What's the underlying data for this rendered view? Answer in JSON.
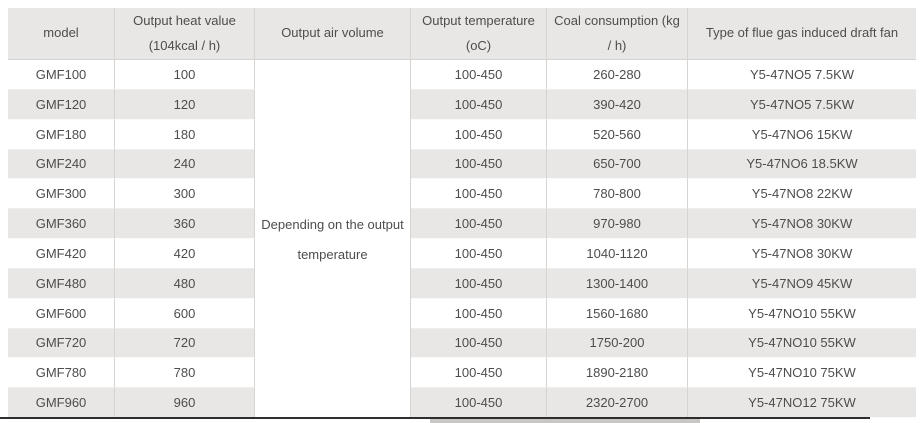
{
  "table": {
    "columns": [
      {
        "key": "model",
        "label_lines": [
          "model"
        ]
      },
      {
        "key": "heat_value",
        "label_lines": [
          "Output heat value",
          "(104kcal / h)"
        ]
      },
      {
        "key": "air_volume",
        "label_lines": [
          "Output air volume"
        ]
      },
      {
        "key": "temperature",
        "label_lines": [
          "Output temperature",
          "(oC)"
        ]
      },
      {
        "key": "coal_consumption",
        "label_lines": [
          "Coal consumption (kg",
          "/ h)"
        ]
      },
      {
        "key": "fan_type",
        "label_lines": [
          "Type of flue gas induced draft fan"
        ]
      }
    ],
    "air_volume_note_lines": [
      "Depending on the output",
      "temperature"
    ],
    "rows": [
      {
        "model": "GMF100",
        "heat_value": "100",
        "temperature": "100-450",
        "coal_consumption": "260-280",
        "fan_type": "Y5-47NO5 7.5KW"
      },
      {
        "model": "GMF120",
        "heat_value": "120",
        "temperature": "100-450",
        "coal_consumption": "390-420",
        "fan_type": "Y5-47NO5 7.5KW"
      },
      {
        "model": "GMF180",
        "heat_value": "180",
        "temperature": "100-450",
        "coal_consumption": "520-560",
        "fan_type": "Y5-47NO6 15KW"
      },
      {
        "model": "GMF240",
        "heat_value": "240",
        "temperature": "100-450",
        "coal_consumption": "650-700",
        "fan_type": "Y5-47NO6 18.5KW"
      },
      {
        "model": "GMF300",
        "heat_value": "300",
        "temperature": "100-450",
        "coal_consumption": "780-800",
        "fan_type": "Y5-47NO8 22KW"
      },
      {
        "model": "GMF360",
        "heat_value": "360",
        "temperature": "100-450",
        "coal_consumption": "970-980",
        "fan_type": "Y5-47NO8 30KW"
      },
      {
        "model": "GMF420",
        "heat_value": "420",
        "temperature": "100-450",
        "coal_consumption": "1040-1120",
        "fan_type": "Y5-47NO8 30KW"
      },
      {
        "model": "GMF480",
        "heat_value": "480",
        "temperature": "100-450",
        "coal_consumption": "1300-1400",
        "fan_type": "Y5-47NO9 45KW"
      },
      {
        "model": "GMF600",
        "heat_value": "600",
        "temperature": "100-450",
        "coal_consumption": "1560-1680",
        "fan_type": "Y5-47NO10 55KW"
      },
      {
        "model": "GMF720",
        "heat_value": "720",
        "temperature": "100-450",
        "coal_consumption": "1750-200",
        "fan_type": "Y5-47NO10 55KW"
      },
      {
        "model": "GMF780",
        "heat_value": "780",
        "temperature": "100-450",
        "coal_consumption": "1890-2180",
        "fan_type": "Y5-47NO10 75KW"
      },
      {
        "model": "GMF960",
        "heat_value": "960",
        "temperature": "100-450",
        "coal_consumption": "2320-2700",
        "fan_type": "Y5-47NO12 75KW"
      }
    ]
  },
  "colors": {
    "header_bg": "#e9e6e6",
    "row_alt_bg": "#e9e6e6",
    "text_color": "#4f4c4c",
    "border_color": "#d6d3d3",
    "rule_color": "#302d2d",
    "thumb_color": "#c9c6c6"
  }
}
